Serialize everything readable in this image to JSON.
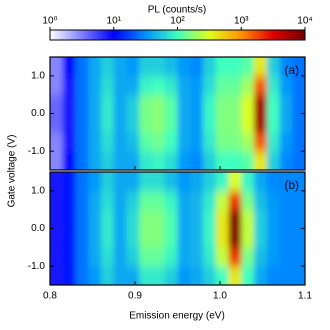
{
  "chart_data": [
    {
      "type": "heatmap",
      "label": "(a)",
      "ylabel": "Gate voltage (V)",
      "x": [
        0.8075,
        0.8225,
        0.8375,
        0.8525,
        0.8675,
        0.8825,
        0.8975,
        0.9125,
        0.9275,
        0.9425,
        0.9575,
        0.9725,
        0.9875,
        1.0025,
        1.0175,
        1.0325,
        1.0475,
        1.0625,
        1.0775,
        1.0925
      ],
      "y": [
        -1.25,
        -0.75,
        -0.25,
        0.25,
        0.75,
        1.25
      ],
      "values": [
        [
          3,
          10,
          25,
          40,
          60,
          40,
          40,
          80,
          90,
          70,
          35,
          30,
          60,
          100,
          100,
          120,
          400,
          60,
          30,
          25
        ],
        [
          3,
          8,
          25,
          40,
          70,
          40,
          50,
          120,
          140,
          100,
          40,
          35,
          80,
          150,
          150,
          200,
          1500,
          80,
          35,
          25
        ],
        [
          4,
          8,
          25,
          40,
          80,
          40,
          60,
          150,
          170,
          120,
          40,
          35,
          90,
          160,
          160,
          300,
          6000,
          100,
          40,
          25
        ],
        [
          4,
          8,
          25,
          40,
          80,
          40,
          60,
          150,
          170,
          120,
          40,
          35,
          90,
          160,
          160,
          300,
          6000,
          100,
          40,
          25
        ],
        [
          3,
          8,
          25,
          40,
          70,
          40,
          40,
          90,
          100,
          80,
          40,
          35,
          70,
          130,
          130,
          200,
          1500,
          80,
          35,
          25
        ],
        [
          3,
          10,
          25,
          40,
          60,
          40,
          35,
          60,
          60,
          50,
          35,
          30,
          60,
          100,
          100,
          120,
          400,
          60,
          30,
          25
        ]
      ],
      "xlim": [
        0.8,
        1.1
      ],
      "ylim": [
        -1.5,
        1.5
      ],
      "yticks": [
        {
          "value": 1,
          "label": "1.0"
        },
        {
          "value": 0,
          "label": "0.0"
        },
        {
          "value": -1,
          "label": "-1.0"
        }
      ],
      "colorbar": {
        "title": "PL (counts/s)",
        "lim": [
          1,
          10000
        ],
        "log": true,
        "ticks": [
          {
            "value": 1,
            "label": "10⁰"
          },
          {
            "value": 10,
            "label": "10¹"
          },
          {
            "value": 100,
            "label": "10²"
          },
          {
            "value": 1000,
            "label": "10³"
          },
          {
            "value": 10000,
            "label": "10⁴"
          }
        ],
        "colors": [
          "#ffffff",
          "#8080ff",
          "#0000ff",
          "#0090ff",
          "#40ffc0",
          "#e0ff20",
          "#ff9000",
          "#e00000",
          "#700000"
        ]
      }
    },
    {
      "type": "heatmap",
      "label": "(b)",
      "xlabel": "Emission energy (eV)",
      "x": [
        0.8075,
        0.8225,
        0.8375,
        0.8525,
        0.8675,
        0.8825,
        0.8975,
        0.9125,
        0.9275,
        0.9425,
        0.9575,
        0.9725,
        0.9875,
        1.0025,
        1.0175,
        1.0325,
        1.0475,
        1.0625,
        1.0775,
        1.0925
      ],
      "y": [
        -1.25,
        -0.75,
        -0.25,
        0.25,
        0.75,
        1.25
      ],
      "values": [
        [
          8,
          12,
          25,
          35,
          60,
          40,
          40,
          80,
          80,
          60,
          35,
          40,
          60,
          100,
          400,
          100,
          40,
          30,
          30,
          30
        ],
        [
          8,
          12,
          25,
          40,
          70,
          40,
          60,
          130,
          130,
          90,
          40,
          45,
          80,
          250,
          2000,
          150,
          50,
          35,
          30,
          30
        ],
        [
          8,
          12,
          25,
          40,
          80,
          40,
          70,
          160,
          160,
          110,
          40,
          45,
          90,
          400,
          8000,
          250,
          60,
          35,
          30,
          30
        ],
        [
          8,
          12,
          25,
          40,
          80,
          40,
          70,
          160,
          160,
          110,
          40,
          45,
          90,
          400,
          8000,
          250,
          60,
          35,
          30,
          30
        ],
        [
          8,
          12,
          25,
          40,
          70,
          40,
          60,
          130,
          130,
          90,
          40,
          45,
          80,
          250,
          2000,
          150,
          50,
          35,
          30,
          30
        ],
        [
          8,
          12,
          25,
          35,
          60,
          40,
          40,
          70,
          70,
          50,
          35,
          40,
          60,
          90,
          300,
          90,
          40,
          30,
          30,
          30
        ]
      ],
      "xlim": [
        0.8,
        1.1
      ],
      "ylim": [
        -1.5,
        1.5
      ],
      "yticks": [
        {
          "value": 1,
          "label": "1.0"
        },
        {
          "value": 0,
          "label": "0.0"
        },
        {
          "value": -1,
          "label": "-1.0"
        }
      ],
      "xticks": [
        {
          "value": 0.8,
          "label": "0.8"
        },
        {
          "value": 0.9,
          "label": "0.9"
        },
        {
          "value": 1,
          "label": "1.0"
        },
        {
          "value": 1.1,
          "label": "1.1"
        }
      ]
    }
  ]
}
